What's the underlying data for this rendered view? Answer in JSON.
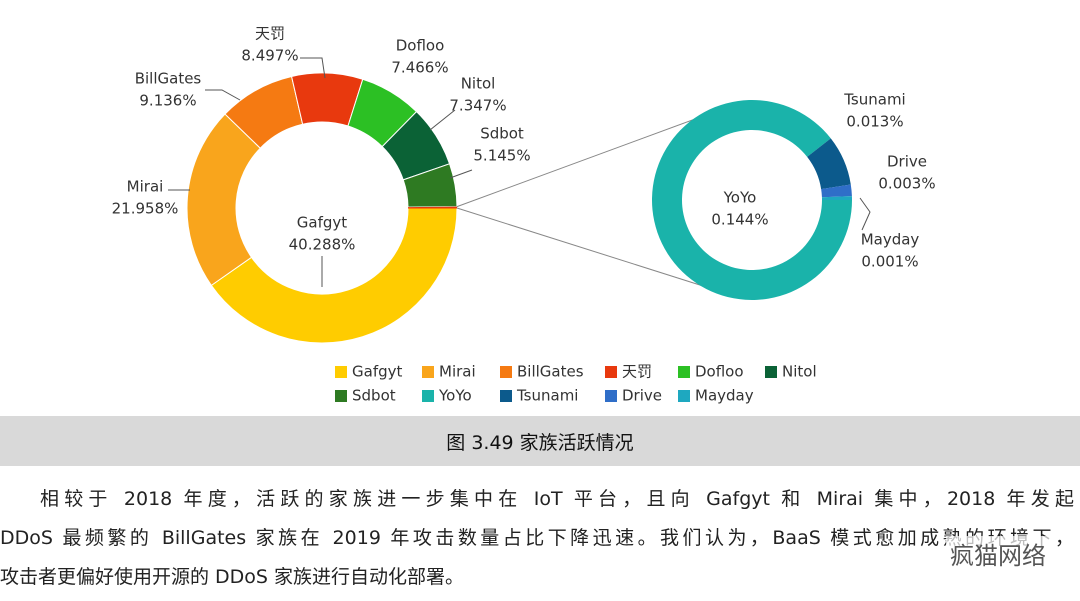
{
  "chart_data": {
    "type": "donut",
    "main": {
      "categories": [
        "Gafgyt",
        "Mirai",
        "BillGates",
        "天罚",
        "Dofloo",
        "Nitol",
        "Sdbot"
      ],
      "values": [
        40.288,
        21.958,
        9.136,
        8.497,
        7.466,
        7.347,
        5.145
      ],
      "value_labels": [
        "40.288%",
        "21.958%",
        "9.136%",
        "8.497%",
        "7.466%",
        "7.347%",
        "5.145%"
      ],
      "colors": [
        "#ffcc00",
        "#f9a51c",
        "#f57a12",
        "#e8390e",
        "#2cc024",
        "#0b6236",
        "#2e7a22"
      ]
    },
    "detail": {
      "categories": [
        "YoYo",
        "Tsunami",
        "Drive",
        "Mayday"
      ],
      "values": [
        0.144,
        0.013,
        0.003,
        0.001
      ],
      "value_labels": [
        "0.144%",
        "0.013%",
        "0.003%",
        "0.001%"
      ],
      "colors": [
        "#1ab3aa",
        "#0c5a8c",
        "#2f6ec8",
        "#1ea8c0"
      ]
    }
  },
  "caption": "图 3.49 家族活跃情况",
  "paragraph": [
    "相较于 2018 年度，活跃的家族进一步集中在 IoT 平台，且向 Gafgyt 和 Mirai 集中，2018 年发起",
    "DDoS 最频繁的 BillGates 家族在 2019 年攻击数量占比下降迅速。我们认为，BaaS 模式愈加成熟的环境下，",
    "攻击者更偏好使用开源的 DDoS 家族进行自动化部署。"
  ],
  "watermark": "疯猫网络"
}
